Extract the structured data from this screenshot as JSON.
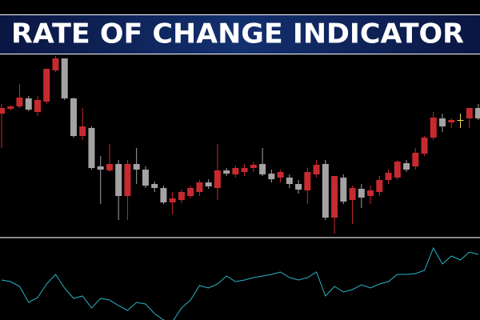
{
  "chart_data": [
    {
      "type": "candlestick",
      "title": "RATE OF CHANGE INDICATOR",
      "ylim": [
        0,
        300
      ],
      "colors": {
        "up": "#c62a2f",
        "down": "#a3a3a3",
        "flat": "#f0d860"
      },
      "open": [
        158,
        164,
        167,
        177,
        160,
        173,
        212,
        227,
        177,
        130,
        140,
        92,
        87,
        95,
        55,
        95,
        88,
        70,
        65,
        47,
        50,
        55,
        60,
        72,
        65,
        87,
        82,
        85,
        90,
        95,
        83,
        78,
        78,
        70,
        62,
        82,
        95,
        28,
        78,
        50,
        64,
        55,
        60,
        75,
        78,
        96,
        92,
        108,
        128,
        152,
        147,
        150,
        152,
        165
      ],
      "high": [
        170,
        168,
        195,
        180,
        180,
        214,
        230,
        227,
        178,
        165,
        142,
        105,
        120,
        100,
        100,
        115,
        92,
        73,
        68,
        60,
        63,
        68,
        75,
        76,
        120,
        90,
        93,
        95,
        98,
        115,
        88,
        88,
        82,
        75,
        90,
        100,
        100,
        80,
        82,
        68,
        70,
        68,
        80,
        88,
        100,
        100,
        115,
        130,
        160,
        158,
        152,
        158,
        165,
        170
      ],
      "low": [
        115,
        162,
        165,
        161,
        155,
        170,
        210,
        175,
        128,
        125,
        88,
        45,
        85,
        25,
        25,
        70,
        65,
        60,
        45,
        32,
        46,
        52,
        55,
        64,
        50,
        80,
        78,
        80,
        85,
        80,
        72,
        72,
        65,
        58,
        45,
        78,
        25,
        8,
        45,
        20,
        40,
        45,
        55,
        70,
        75,
        85,
        88,
        105,
        125,
        135,
        140,
        140,
        140,
        150
      ],
      "close": [
        165,
        167,
        178,
        163,
        175,
        214,
        227,
        177,
        130,
        142,
        90,
        88,
        95,
        55,
        95,
        88,
        68,
        65,
        47,
        52,
        60,
        65,
        72,
        67,
        87,
        83,
        90,
        90,
        94,
        82,
        76,
        85,
        70,
        63,
        85,
        94,
        28,
        80,
        48,
        65,
        53,
        62,
        75,
        84,
        98,
        88,
        109,
        128,
        153,
        142,
        150,
        150,
        165,
        152
      ]
    },
    {
      "type": "line",
      "color": "#2bb5c8",
      "ylim": [
        0,
        100
      ],
      "values": [
        50,
        48,
        42,
        22,
        28,
        45,
        57,
        40,
        27,
        30,
        15,
        27,
        25,
        18,
        12,
        22,
        20,
        8,
        0,
        -2,
        15,
        25,
        43,
        40,
        45,
        55,
        48,
        50,
        53,
        55,
        57,
        60,
        53,
        50,
        53,
        60,
        30,
        42,
        35,
        38,
        44,
        40,
        45,
        48,
        57,
        57,
        58,
        62,
        90,
        70,
        80,
        75,
        85,
        82
      ]
    }
  ]
}
